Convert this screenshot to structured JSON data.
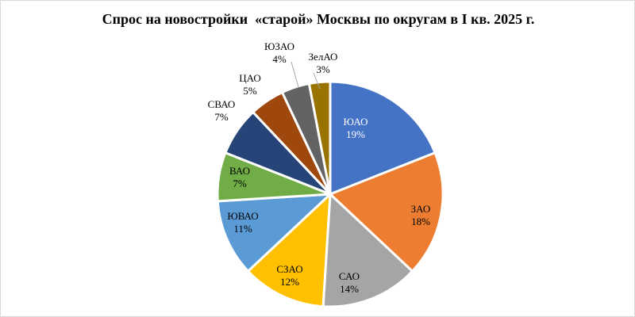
{
  "chart_data": {
    "type": "pie",
    "title": "Спрос на новостройки  «старой» Москвы по округам в I кв. 2025 г.",
    "slices": [
      {
        "label": "ЮАО",
        "value": 19,
        "value_label": "19%",
        "color": "#4472c4"
      },
      {
        "label": "ЗАО",
        "value": 18,
        "value_label": "18%",
        "color": "#ed7d31"
      },
      {
        "label": "САО",
        "value": 14,
        "value_label": "14%",
        "color": "#a5a5a5"
      },
      {
        "label": "СЗАО",
        "value": 12,
        "value_label": "12%",
        "color": "#ffc000"
      },
      {
        "label": "ЮВАО",
        "value": 11,
        "value_label": "11%",
        "color": "#5b9bd5"
      },
      {
        "label": "ВАО",
        "value": 7,
        "value_label": "7%",
        "color": "#70ad47"
      },
      {
        "label": "СВАО",
        "value": 7,
        "value_label": "7%",
        "color": "#264478"
      },
      {
        "label": "ЦАО",
        "value": 5,
        "value_label": "5%",
        "color": "#9e480e"
      },
      {
        "label": "ЮЗАО",
        "value": 4,
        "value_label": "4%",
        "color": "#636363"
      },
      {
        "label": "ЗелАО",
        "value": 3,
        "value_label": "3%",
        "color": "#997300"
      }
    ]
  }
}
